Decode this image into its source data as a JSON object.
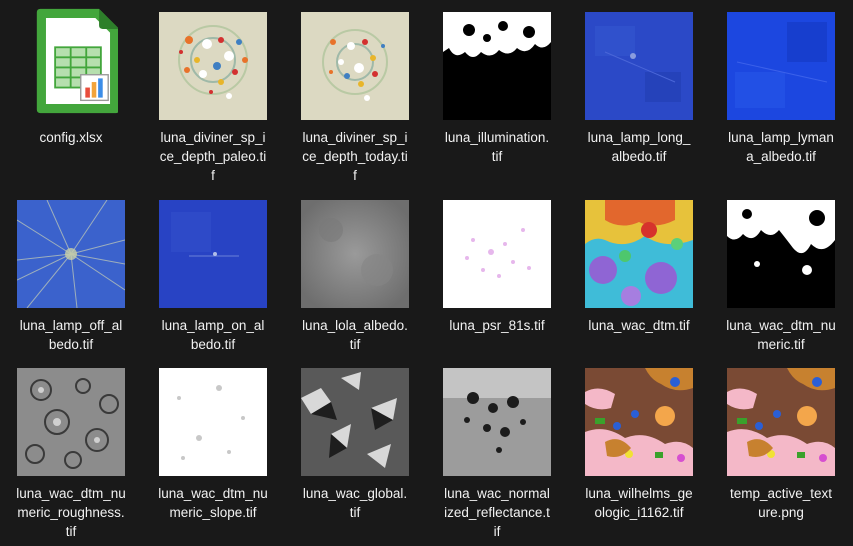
{
  "files": [
    {
      "label": "config.xlsx",
      "icon": "spreadsheet-icon"
    },
    {
      "label": "luna_diviner_sp_i\nce_depth_paleo.ti\nf",
      "icon": "ice-depth-thumbnail"
    },
    {
      "label": "luna_diviner_sp_i\nce_depth_today.ti\nf",
      "icon": "ice-depth-thumbnail"
    },
    {
      "label": "luna_illumination.\ntif",
      "icon": "illumination-thumbnail"
    },
    {
      "label": "luna_lamp_long_\nalbedo.tif",
      "icon": "blue-albedo-thumbnail"
    },
    {
      "label": "luna_lamp_lyman\na_albedo.tif",
      "icon": "blue-albedo-thumbnail"
    },
    {
      "label": "luna_lamp_off_al\nbedo.tif",
      "icon": "blue-albedo-thumbnail"
    },
    {
      "label": "luna_lamp_on_al\nbedo.tif",
      "icon": "blue-albedo-thumbnail"
    },
    {
      "label": "luna_lola_albedo.\ntif",
      "icon": "gray-albedo-thumbnail"
    },
    {
      "label": "luna_psr_81s.tif",
      "icon": "psr-thumbnail"
    },
    {
      "label": "luna_wac_dtm.tif",
      "icon": "dtm-color-thumbnail"
    },
    {
      "label": "luna_wac_dtm_nu\nmeric.tif",
      "icon": "bw-mask-thumbnail"
    },
    {
      "label": "luna_wac_dtm_nu\nmeric_roughness.\ntif",
      "icon": "roughness-thumbnail"
    },
    {
      "label": "luna_wac_dtm_nu\nmeric_slope.tif",
      "icon": "slope-thumbnail"
    },
    {
      "label": "luna_wac_global.\ntif",
      "icon": "shaded-relief-thumbnail"
    },
    {
      "label": "luna_wac_normal\nized_reflectance.t\nif",
      "icon": "reflectance-thumbnail"
    },
    {
      "label": "luna_wilhelms_ge\nologic_i1162.tif",
      "icon": "geologic-map-thumbnail"
    },
    {
      "label": "temp_active_text\nure.png",
      "icon": "geologic-map-thumbnail"
    }
  ]
}
